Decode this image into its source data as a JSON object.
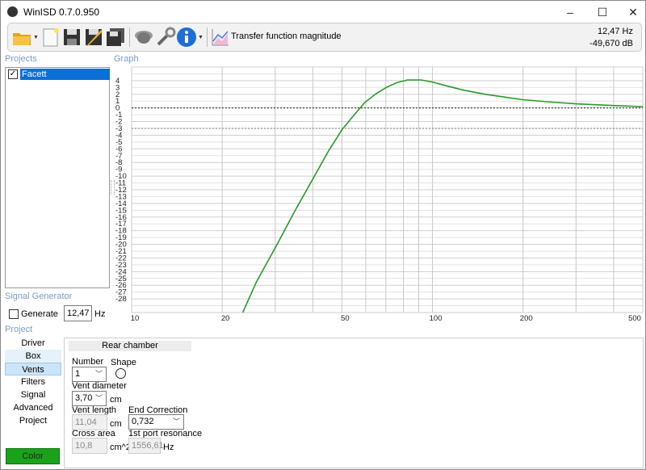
{
  "window": {
    "title": "WinISD 0.7.0.950",
    "minimize": "–",
    "maximize": "☐",
    "close": "✕"
  },
  "toolbar": {
    "icons": [
      "open-folder-icon",
      "new-document-icon",
      "save-icon",
      "save-as-icon",
      "save-all-icon",
      "driver-icon",
      "tools-icon",
      "info-icon",
      "graph-icon"
    ],
    "graph_selector_label": "Transfer function magnitude",
    "readout_freq": "12,47 Hz",
    "readout_db": "-49,670 dB"
  },
  "projects": {
    "label": "Projects",
    "items": [
      {
        "name": "Facett",
        "checked": true
      }
    ]
  },
  "graph": {
    "label": "Graph"
  },
  "signal_generator": {
    "label": "Signal Generator",
    "generate_label": "Generate",
    "generate_checked": false,
    "frequency": "12,47",
    "unit": "Hz"
  },
  "project": {
    "label": "Project",
    "tabs": [
      "Driver",
      "Box",
      "Vents",
      "Filters",
      "Signal",
      "Advanced",
      "Project"
    ],
    "active_tab": "Vents",
    "color_button": "Color",
    "color": "#1aa31a"
  },
  "vents": {
    "section": "Rear chamber",
    "number_label": "Number",
    "number": "1",
    "shape_label": "Shape",
    "shape": "round",
    "diameter_label": "Vent diameter",
    "diameter": "3,70",
    "diameter_unit": "cm",
    "length_label": "Vent length",
    "length": "11,04",
    "length_unit": "cm",
    "end_correction_label": "End Correction",
    "end_correction": "0,732",
    "area_label": "Cross area",
    "area": "10,8",
    "area_unit": "cm^2",
    "resonance_label": "1st port resonance",
    "resonance": "1556,61",
    "resonance_unit": "Hz"
  },
  "chart_data": {
    "type": "line",
    "title": "",
    "xlabel": "",
    "ylabel": "",
    "xscale": "log",
    "xlim": [
      10,
      500
    ],
    "ylim": [
      -30,
      6
    ],
    "x_ticks": [
      10,
      20,
      50,
      100,
      200,
      500
    ],
    "y_ticks": [
      4,
      3,
      2,
      1,
      0,
      -1,
      -2,
      -3,
      -4,
      -5,
      -6,
      -7,
      -8,
      -9,
      -10,
      -11,
      -12,
      -13,
      -14,
      -15,
      -16,
      -17,
      -18,
      -19,
      -20,
      -21,
      -22,
      -23,
      -24,
      -25,
      -26,
      -27,
      -28
    ],
    "grid": true,
    "reference_lines": [
      0,
      -3
    ],
    "series": [
      {
        "color": "#2a9a2a",
        "x": [
          23.4,
          26,
          30.2,
          35,
          40.4,
          45,
          50,
          55,
          59.6,
          65,
          70.2,
          76,
          82.6,
          91.6,
          100,
          110,
          127,
          150,
          200,
          250,
          300,
          400,
          500
        ],
        "y": [
          -30,
          -25.5,
          -20.3,
          -15.0,
          -10.1,
          -6.4,
          -3.2,
          -1.0,
          0.8,
          2.1,
          3.0,
          3.7,
          4.1,
          4.1,
          3.8,
          3.3,
          2.6,
          2.0,
          1.2,
          0.85,
          0.6,
          0.35,
          0.2
        ]
      }
    ]
  }
}
